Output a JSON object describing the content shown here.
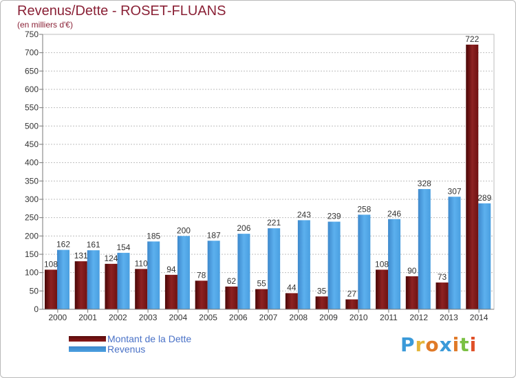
{
  "page": {
    "title": "Revenus/Dette - ROSET-FLUANS",
    "subtitle": "(en milliers d'€)"
  },
  "legend": {
    "debt_label": "Montant de la Dette",
    "revenue_label": "Revenus"
  },
  "logo": {
    "letters": [
      "P",
      "r",
      "o",
      "x",
      "i",
      "t",
      "i"
    ],
    "colors": [
      "#3a9ad9",
      "#e3b53a",
      "#e07a28",
      "#3a9ad9",
      "#e07a28",
      "#7ac043",
      "#e05028"
    ]
  },
  "colors": {
    "debt": "#8b1a1a",
    "revenue": "#4a9fe0"
  },
  "chart_data": {
    "type": "bar",
    "categories": [
      "2000",
      "2001",
      "2002",
      "2003",
      "2004",
      "2005",
      "2006",
      "2007",
      "2008",
      "2009",
      "2010",
      "2011",
      "2012",
      "2013",
      "2014"
    ],
    "series": [
      {
        "name": "Montant de la Dette",
        "values": [
          108,
          131,
          124,
          110,
          94,
          78,
          62,
          55,
          44,
          35,
          27,
          108,
          90,
          73,
          722
        ]
      },
      {
        "name": "Revenus",
        "values": [
          162,
          161,
          154,
          185,
          200,
          187,
          206,
          221,
          243,
          239,
          258,
          246,
          328,
          307,
          289
        ]
      }
    ],
    "yticks": [
      0,
      50,
      100,
      150,
      200,
      250,
      300,
      350,
      400,
      450,
      500,
      550,
      600,
      650,
      700,
      750
    ],
    "ylim": [
      0,
      750
    ],
    "grid": true,
    "legend_position": "bottom-left"
  }
}
